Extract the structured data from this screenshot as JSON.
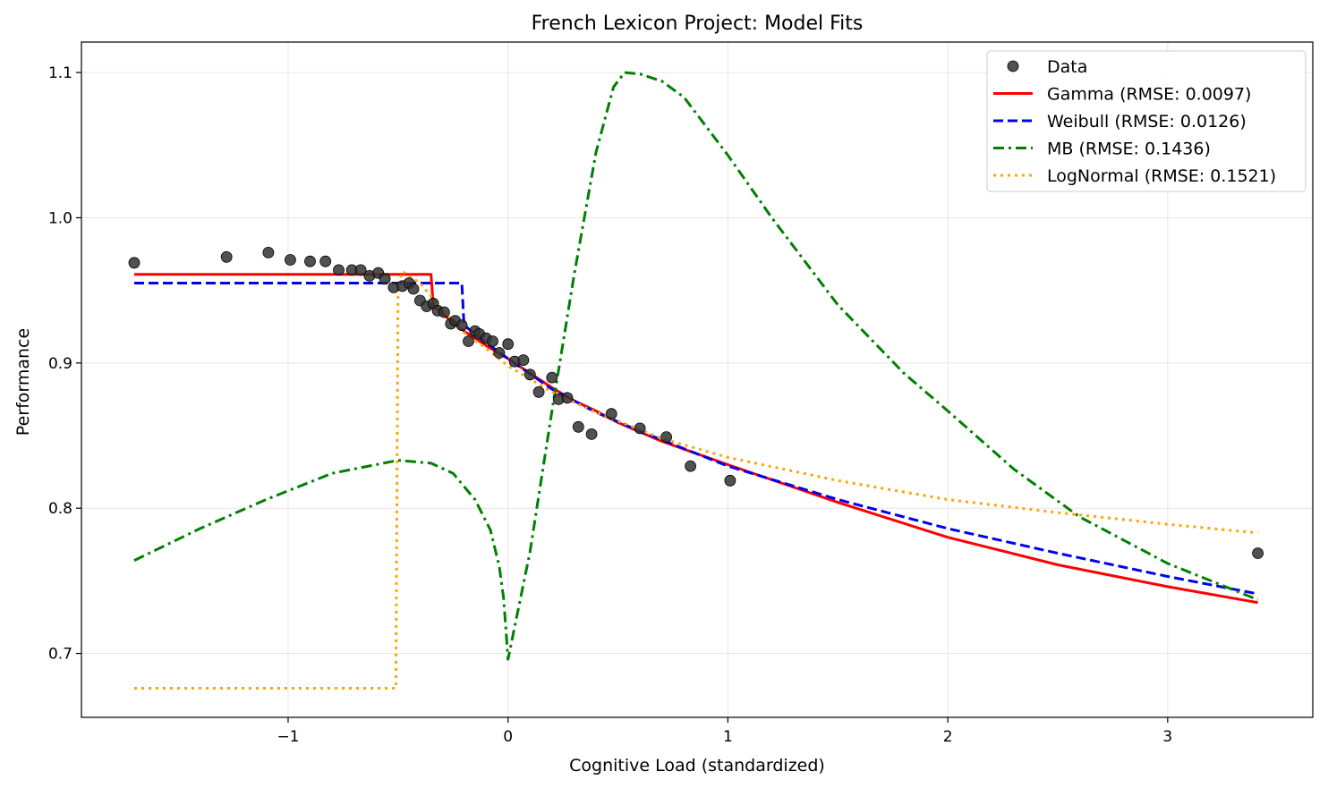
{
  "chart_data": {
    "type": "scatter",
    "title": "French Lexicon Project: Model Fits",
    "xlabel": "Cognitive Load (standardized)",
    "ylabel": "Performance",
    "xlim": [
      -1.94,
      3.66
    ],
    "ylim": [
      0.656,
      1.121
    ],
    "xticks": [
      -1,
      0,
      1,
      2,
      3
    ],
    "xtick_labels": [
      "−1",
      "0",
      "1",
      "2",
      "3"
    ],
    "yticks": [
      0.7,
      0.8,
      0.9,
      1.0,
      1.1
    ],
    "ytick_labels": [
      "0.7",
      "0.8",
      "0.9",
      "1.0",
      "1.1"
    ],
    "grid": true,
    "legend_position": "top-right",
    "scatter": {
      "name": "Data",
      "color": "#333333",
      "points": [
        [
          -1.7,
          0.969
        ],
        [
          -1.28,
          0.973
        ],
        [
          -1.09,
          0.976
        ],
        [
          -0.99,
          0.971
        ],
        [
          -0.9,
          0.97
        ],
        [
          -0.83,
          0.97
        ],
        [
          -0.77,
          0.964
        ],
        [
          -0.71,
          0.964
        ],
        [
          -0.67,
          0.964
        ],
        [
          -0.63,
          0.96
        ],
        [
          -0.59,
          0.962
        ],
        [
          -0.56,
          0.958
        ],
        [
          -0.52,
          0.952
        ],
        [
          -0.48,
          0.953
        ],
        [
          -0.45,
          0.955
        ],
        [
          -0.43,
          0.951
        ],
        [
          -0.4,
          0.943
        ],
        [
          -0.37,
          0.939
        ],
        [
          -0.34,
          0.941
        ],
        [
          -0.32,
          0.936
        ],
        [
          -0.29,
          0.935
        ],
        [
          -0.26,
          0.927
        ],
        [
          -0.24,
          0.929
        ],
        [
          -0.21,
          0.926
        ],
        [
          -0.18,
          0.915
        ],
        [
          -0.15,
          0.922
        ],
        [
          -0.13,
          0.92
        ],
        [
          -0.1,
          0.917
        ],
        [
          -0.07,
          0.915
        ],
        [
          -0.04,
          0.907
        ],
        [
          0.0,
          0.913
        ],
        [
          0.03,
          0.901
        ],
        [
          0.07,
          0.902
        ],
        [
          0.1,
          0.892
        ],
        [
          0.14,
          0.88
        ],
        [
          0.2,
          0.89
        ],
        [
          0.23,
          0.875
        ],
        [
          0.27,
          0.876
        ],
        [
          0.32,
          0.856
        ],
        [
          0.38,
          0.851
        ],
        [
          0.47,
          0.865
        ],
        [
          0.6,
          0.855
        ],
        [
          0.72,
          0.849
        ],
        [
          0.83,
          0.829
        ],
        [
          1.01,
          0.819
        ],
        [
          3.41,
          0.769
        ]
      ]
    },
    "series": [
      {
        "name": "Gamma (RMSE: 0.0097)",
        "color": "#ff0000",
        "style": "solid",
        "points": [
          [
            -1.7,
            0.961
          ],
          [
            -0.35,
            0.961
          ],
          [
            -0.34,
            0.94
          ],
          [
            -0.3,
            0.934
          ],
          [
            -0.2,
            0.922
          ],
          [
            -0.1,
            0.912
          ],
          [
            0.0,
            0.903
          ],
          [
            0.1,
            0.893
          ],
          [
            0.2,
            0.883
          ],
          [
            0.3,
            0.874
          ],
          [
            0.4,
            0.867
          ],
          [
            0.5,
            0.859
          ],
          [
            0.7,
            0.846
          ],
          [
            1.0,
            0.83
          ],
          [
            1.5,
            0.804
          ],
          [
            2.0,
            0.78
          ],
          [
            2.5,
            0.761
          ],
          [
            3.0,
            0.746
          ],
          [
            3.41,
            0.735
          ]
        ]
      },
      {
        "name": "Weibull (RMSE: 0.0126)",
        "color": "#0000ee",
        "style": "dashed",
        "points": [
          [
            -1.7,
            0.955
          ],
          [
            -0.21,
            0.955
          ],
          [
            -0.2,
            0.926
          ],
          [
            -0.1,
            0.914
          ],
          [
            0.0,
            0.903
          ],
          [
            0.2,
            0.882
          ],
          [
            0.4,
            0.866
          ],
          [
            0.6,
            0.853
          ],
          [
            1.0,
            0.829
          ],
          [
            1.5,
            0.806
          ],
          [
            2.0,
            0.786
          ],
          [
            2.5,
            0.769
          ],
          [
            3.0,
            0.753
          ],
          [
            3.41,
            0.741
          ]
        ]
      },
      {
        "name": "MB (RMSE: 0.1436)",
        "color": "#008000",
        "style": "dashdot",
        "points": [
          [
            -1.7,
            0.764
          ],
          [
            -1.4,
            0.786
          ],
          [
            -1.1,
            0.806
          ],
          [
            -0.8,
            0.824
          ],
          [
            -0.5,
            0.833
          ],
          [
            -0.35,
            0.831
          ],
          [
            -0.25,
            0.824
          ],
          [
            -0.15,
            0.806
          ],
          [
            -0.08,
            0.785
          ],
          [
            -0.04,
            0.76
          ],
          [
            -0.02,
            0.738
          ],
          [
            0.0,
            0.696
          ],
          [
            0.1,
            0.77
          ],
          [
            0.2,
            0.867
          ],
          [
            0.3,
            0.96
          ],
          [
            0.4,
            1.045
          ],
          [
            0.48,
            1.09
          ],
          [
            0.53,
            1.1
          ],
          [
            0.6,
            1.099
          ],
          [
            0.7,
            1.094
          ],
          [
            0.8,
            1.083
          ],
          [
            1.0,
            1.043
          ],
          [
            1.2,
            1.0
          ],
          [
            1.5,
            0.94
          ],
          [
            1.8,
            0.893
          ],
          [
            2.0,
            0.867
          ],
          [
            2.3,
            0.827
          ],
          [
            2.6,
            0.794
          ],
          [
            3.0,
            0.762
          ],
          [
            3.41,
            0.737
          ]
        ]
      },
      {
        "name": "LogNormal (RMSE: 0.1521)",
        "color": "#ffa500",
        "style": "dotted",
        "points": [
          [
            -1.7,
            0.676
          ],
          [
            -0.51,
            0.676
          ],
          [
            -0.5,
            0.953
          ],
          [
            -0.48,
            0.963
          ],
          [
            -0.4,
            0.955
          ],
          [
            -0.3,
            0.937
          ],
          [
            -0.2,
            0.921
          ],
          [
            -0.1,
            0.91
          ],
          [
            0.0,
            0.898
          ],
          [
            0.2,
            0.88
          ],
          [
            0.4,
            0.866
          ],
          [
            0.7,
            0.848
          ],
          [
            1.0,
            0.835
          ],
          [
            1.5,
            0.819
          ],
          [
            2.0,
            0.806
          ],
          [
            2.5,
            0.797
          ],
          [
            3.0,
            0.789
          ],
          [
            3.41,
            0.783
          ]
        ]
      }
    ]
  }
}
